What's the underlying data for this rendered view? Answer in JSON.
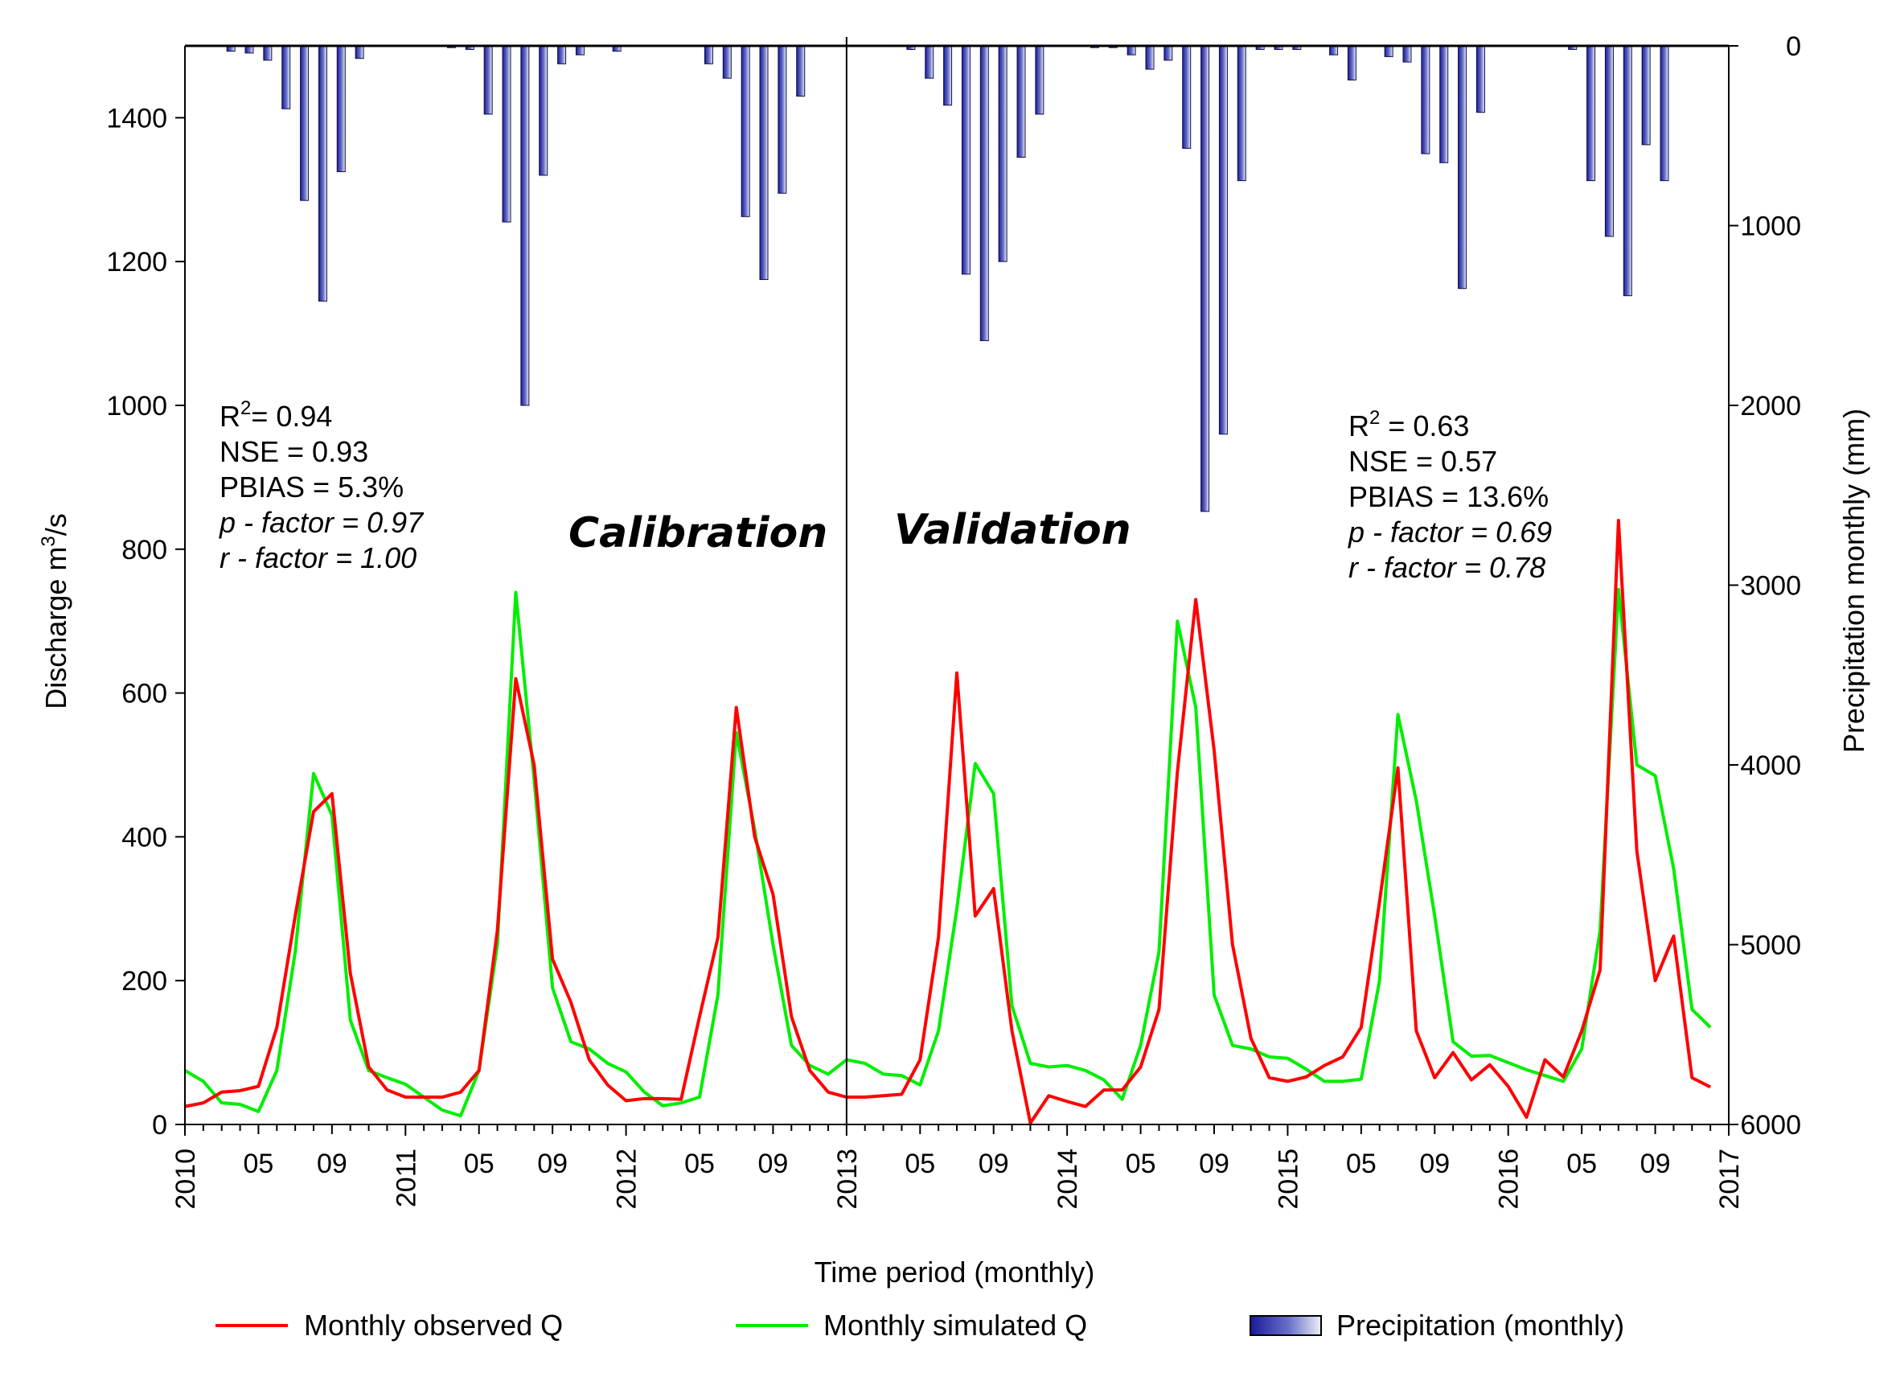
{
  "chart_data": {
    "type": "line",
    "title": "",
    "xlabel": "Time period (monthly)",
    "ylabel_left": "Discharge m³/s",
    "ylabel_left_base": "Discharge m",
    "ylabel_left_sup": "3",
    "ylabel_left_tail": "/s",
    "ylabel_right": "Precipitation monthly (mm)",
    "ylim_left": [
      0,
      1500
    ],
    "ylim_right": [
      6000,
      0
    ],
    "yticks_left": [
      0,
      200,
      400,
      600,
      800,
      1000,
      1200,
      1400
    ],
    "yticks_right": [
      0,
      1000,
      2000,
      3000,
      4000,
      5000,
      6000
    ],
    "x_start": "2010-01",
    "x_end": "2017-01",
    "x_year_labels": [
      "2010",
      "2011",
      "2012",
      "2013",
      "2014",
      "2015",
      "2016",
      "2017"
    ],
    "x_month_labels": [
      "05",
      "09"
    ],
    "divider_at": "2013-01",
    "series": [
      {
        "name": "Monthly observed Q",
        "color": "#ff0000",
        "values": [
          25,
          30,
          45,
          47,
          53,
          135,
          290,
          435,
          460,
          210,
          80,
          48,
          38,
          38,
          38,
          45,
          75,
          270,
          620,
          500,
          230,
          170,
          90,
          55,
          33,
          36,
          36,
          35,
          150,
          260,
          580,
          400,
          320,
          150,
          75,
          45,
          38,
          38,
          40,
          42,
          90,
          260,
          628,
          290,
          328,
          130,
          2,
          40,
          32,
          25,
          48,
          48,
          80,
          160,
          490,
          730,
          520,
          250,
          120,
          65,
          60,
          66,
          82,
          94,
          135,
          310,
          496,
          130,
          65,
          100,
          62,
          83,
          53,
          10,
          90,
          66,
          130,
          215,
          840,
          380,
          200,
          262,
          65,
          52
        ]
      },
      {
        "name": "Monthly simulated Q",
        "color": "#00ee00",
        "values": [
          75,
          60,
          30,
          28,
          18,
          75,
          240,
          488,
          430,
          145,
          75,
          65,
          56,
          38,
          20,
          12,
          75,
          250,
          740,
          480,
          190,
          115,
          105,
          85,
          73,
          45,
          26,
          30,
          38,
          180,
          545,
          410,
          250,
          110,
          82,
          70,
          90,
          85,
          70,
          68,
          55,
          130,
          300,
          502,
          460,
          165,
          85,
          80,
          82,
          75,
          62,
          35,
          110,
          240,
          700,
          580,
          180,
          110,
          105,
          94,
          92,
          77,
          60,
          60,
          63,
          200,
          570,
          450,
          290,
          115,
          95,
          96,
          86,
          76,
          68,
          60,
          105,
          270,
          744,
          500,
          485,
          356,
          160,
          135
        ]
      }
    ],
    "precipitation": {
      "name": "Precipitation (monthly)",
      "unit": "mm",
      "values": [
        0,
        0,
        30,
        40,
        80,
        350,
        860,
        1420,
        700,
        70,
        0,
        0,
        0,
        0,
        10,
        20,
        380,
        980,
        2000,
        720,
        100,
        50,
        0,
        30,
        0,
        0,
        0,
        0,
        100,
        180,
        950,
        1300,
        820,
        280,
        0,
        0,
        0,
        0,
        0,
        20,
        180,
        330,
        1270,
        1640,
        1200,
        620,
        380,
        0,
        0,
        10,
        10,
        50,
        130,
        80,
        570,
        2590,
        2160,
        750,
        20,
        20,
        20,
        0,
        50,
        190,
        0,
        60,
        90,
        600,
        650,
        1350,
        370,
        0,
        0,
        0,
        0,
        20,
        750,
        1060,
        1390,
        550,
        750,
        0,
        0,
        0
      ]
    },
    "annotations": {
      "calibration": {
        "label": "Calibration",
        "r2_base": "R",
        "r2_sup": "2",
        "r2_value": "= 0.94",
        "nse": "NSE = 0.93",
        "pbias": "PBIAS = 5.3%",
        "p_factor": "p - factor = 0.97",
        "r_factor": "r - factor = 1.00"
      },
      "validation": {
        "label": "Validation",
        "r2_base": "R",
        "r2_sup": "2",
        "r2_value": " = 0.63",
        "nse": "NSE = 0.57",
        "pbias": "PBIAS = 13.6%",
        "p_factor": "p - factor = 0.69",
        "r_factor": "r - factor = 0.78"
      }
    },
    "legend": {
      "placement": "bottom",
      "items": [
        "Monthly observed Q",
        "Monthly simulated Q",
        "Precipitation (monthly)"
      ]
    }
  }
}
